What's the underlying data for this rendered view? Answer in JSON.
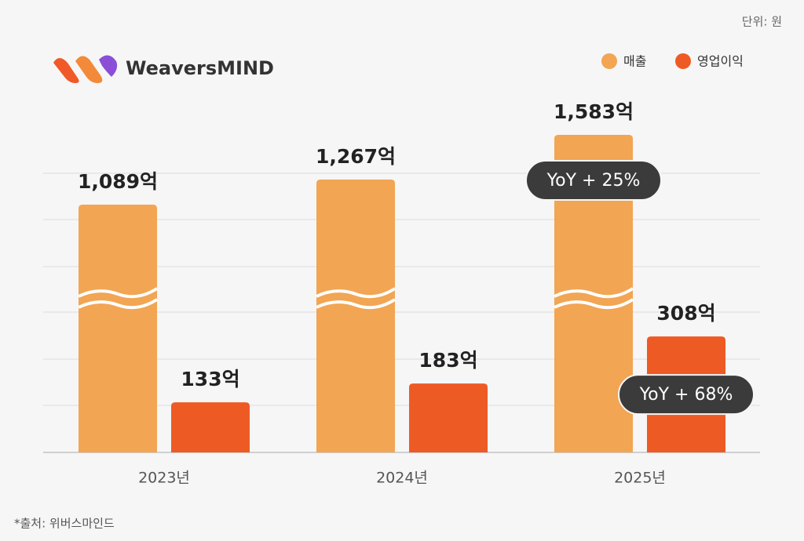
{
  "chart_data": {
    "type": "bar",
    "unit_note": "단위: 원",
    "brand": "WeaversMIND",
    "source": "*출처: 위버스마인드",
    "categories": [
      "2023년",
      "2024년",
      "2025년"
    ],
    "series": [
      {
        "name": "매출",
        "color": "#f2a553",
        "values": [
          1089,
          1267,
          1583
        ],
        "value_labels": [
          "1,089억",
          "1,267억",
          "1,583억"
        ],
        "broken": true
      },
      {
        "name": "영업이익",
        "color": "#ee5a24",
        "values": [
          133,
          183,
          308
        ],
        "value_labels": [
          "133억",
          "183억",
          "308억"
        ]
      }
    ],
    "annotations": [
      {
        "text": "YoY + 25%",
        "series": 0,
        "index": 2
      },
      {
        "text": "YoY + 68%",
        "series": 1,
        "index": 2
      }
    ],
    "grid": true
  }
}
